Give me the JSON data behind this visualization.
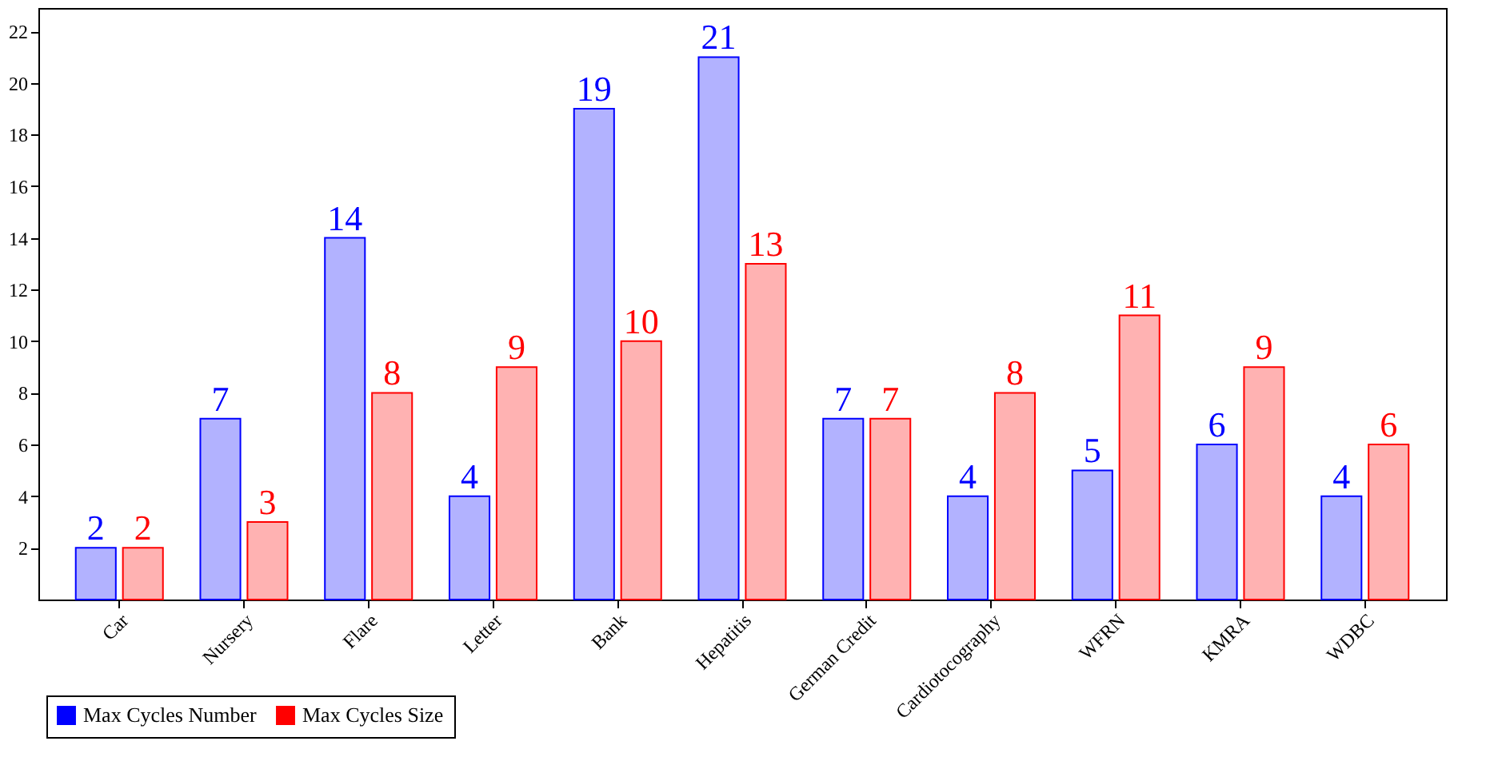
{
  "chart_data": {
    "type": "bar",
    "categories": [
      "Car",
      "Nursery",
      "Flare",
      "Letter",
      "Bank",
      "Hepatitis",
      "German Credit",
      "Cardiotocography",
      "WFRN",
      "KMRA",
      "WDBC"
    ],
    "series": [
      {
        "name": "Max Cycles Number",
        "color": "#0000ff",
        "values": [
          2,
          7,
          14,
          4,
          19,
          21,
          7,
          4,
          5,
          6,
          4
        ]
      },
      {
        "name": "Max Cycles Size",
        "color": "#ff0000",
        "values": [
          2,
          3,
          8,
          9,
          10,
          13,
          7,
          8,
          11,
          9,
          6
        ]
      }
    ],
    "ylim": [
      0,
      22.9
    ],
    "yticks": [
      2,
      4,
      6,
      8,
      10,
      12,
      14,
      16,
      18,
      20,
      22
    ],
    "data_labels": true,
    "grid": false,
    "legend": "bottom left"
  }
}
